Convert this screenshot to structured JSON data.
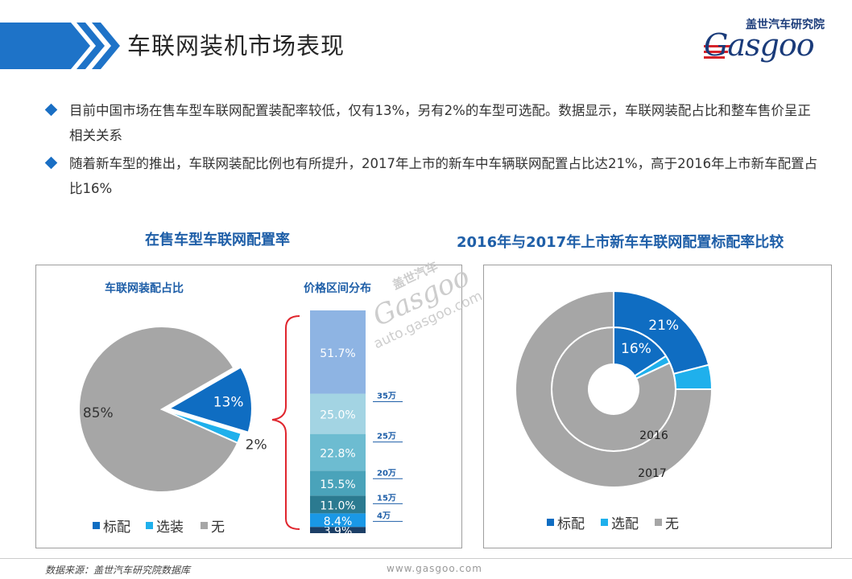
{
  "header": {
    "title": "车联网装机市场表现",
    "accent_color": "#1e73c8"
  },
  "logo": {
    "cn": "盖世汽车研究院",
    "en": "Gasgoo"
  },
  "bullets": [
    "目前中国市场在售车型车联网配置装配率较低，仅有13%，另有2%的车型可选配。数据显示，车联网装配占比和整车售价呈正相关关系",
    "随着新车型的推出，车联网装配比例也有所提升，2017年上市的新车中车辆联网配置占比达21%，高于2016年上市新车配置占比16%"
  ],
  "left_section": {
    "title": "在售车型车联网配置率"
  },
  "right_section": {
    "title": "2016年与2017年上市新车车联网配置标配率比较"
  },
  "watermark": {
    "cn": "盖世汽车",
    "en": "Gasgoo",
    "url": "auto.gasgoo.com"
  },
  "footer": {
    "source": "数据来源：盖世汽车研究院数据库",
    "url": "www.gasgoo.com"
  },
  "chart_data": [
    {
      "type": "pie",
      "title": "车联网装配占比",
      "categories": [
        "标配",
        "选装",
        "无"
      ],
      "values": [
        13,
        2,
        85
      ],
      "labels": [
        "13%",
        "2%",
        "85%"
      ],
      "colors": [
        "#0f6dc2",
        "#1fb0ec",
        "#a6a6a6"
      ],
      "exploded": "标配",
      "legend": "bottom"
    },
    {
      "type": "bar",
      "stacked": true,
      "title": "价格区间分布",
      "segments": [
        {
          "label": "3.9%",
          "value": 3.9,
          "color": "#1c3f66"
        },
        {
          "label": "8.4%",
          "value": 8.4,
          "color": "#1a98e6"
        },
        {
          "label": "11.0%",
          "value": 11.0,
          "color": "#2b7a90"
        },
        {
          "label": "15.5%",
          "value": 15.5,
          "color": "#4aa3ba"
        },
        {
          "label": "22.8%",
          "value": 22.8,
          "color": "#6dbcd1"
        },
        {
          "label": "25.0%",
          "value": 25.0,
          "color": "#a3d4e3"
        },
        {
          "label": "51.7%",
          "value": 51.7,
          "color": "#8eb4e3"
        }
      ],
      "price_ticks": [
        "4万",
        "15万",
        "20万",
        "25万",
        "35万"
      ]
    },
    {
      "type": "pie",
      "variant": "donut",
      "title": "2016年与2017年上市新车车联网配置标配率比较",
      "categories": [
        "标配",
        "选配",
        "无"
      ],
      "colors": [
        "#0f6dc2",
        "#1fb0ec",
        "#a6a6a6"
      ],
      "series": [
        {
          "name": "2016",
          "values": [
            16,
            2,
            82
          ],
          "label": "16%"
        },
        {
          "name": "2017",
          "values": [
            21,
            4,
            75
          ],
          "label": "21%"
        }
      ],
      "legend": "bottom"
    }
  ]
}
